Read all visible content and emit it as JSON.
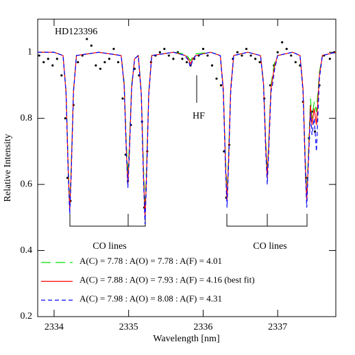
{
  "chart_data": {
    "type": "line",
    "xlabel": "Wavelength [nm]",
    "ylabel": "Relative Intensity",
    "annotations": [
      "HD123396",
      "HF",
      "CO lines",
      "CO lines"
    ],
    "xlim": [
      2333.78,
      2337.78
    ],
    "ylim": [
      0.2,
      1.1
    ],
    "xticks": [
      2334,
      2335,
      2336,
      2337
    ],
    "yticks": [
      0.2,
      0.4,
      0.6,
      0.8,
      1
    ],
    "x": [
      2333.78,
      2334.0,
      2334.12,
      2334.16,
      2334.19,
      2334.21,
      2334.23,
      2334.26,
      2334.3,
      2334.6,
      2334.9,
      2334.94,
      2334.97,
      2334.99,
      2335.01,
      2335.04,
      2335.08,
      2335.13,
      2335.17,
      2335.2,
      2335.22,
      2335.24,
      2335.27,
      2335.31,
      2335.6,
      2335.76,
      2335.8,
      2335.83,
      2335.86,
      2335.9,
      2336.1,
      2336.23,
      2336.27,
      2336.3,
      2336.32,
      2336.34,
      2336.37,
      2336.41,
      2336.6,
      2336.77,
      2336.81,
      2336.84,
      2336.86,
      2336.88,
      2336.91,
      2336.93,
      2336.96,
      2337.0,
      2337.2,
      2337.3,
      2337.34,
      2337.37,
      2337.39,
      2337.41,
      2337.44,
      2337.46,
      2337.49,
      2337.52,
      2337.56,
      2337.6,
      2337.78
    ],
    "series": [
      {
        "name": "A(C) = 7.78 : A(O) = 7.78 : A(F) = 4.01",
        "color": "#00e000",
        "linestyle": "long-dash",
        "values": [
          1.0,
          1.0,
          0.99,
          0.885,
          0.655,
          0.54,
          0.655,
          0.885,
          0.99,
          1.0,
          0.99,
          0.91,
          0.72,
          0.63,
          0.72,
          0.9,
          0.98,
          0.99,
          0.88,
          0.65,
          0.53,
          0.65,
          0.88,
          0.99,
          1.0,
          0.995,
          0.985,
          0.975,
          0.985,
          0.995,
          1.0,
          0.99,
          0.89,
          0.68,
          0.57,
          0.68,
          0.89,
          0.99,
          1.0,
          0.99,
          0.91,
          0.73,
          0.64,
          0.73,
          0.9,
          0.93,
          0.97,
          0.99,
          1.0,
          0.99,
          0.89,
          0.68,
          0.57,
          0.68,
          0.86,
          0.8,
          0.85,
          0.82,
          0.94,
          0.99,
          1.0
        ]
      },
      {
        "name": "A(C) = 7.88 : A(O) = 7.93 : A(F) = 4.16 (best fit)",
        "color": "#ff0000",
        "linestyle": "solid",
        "values": [
          1.0,
          1.0,
          0.99,
          0.88,
          0.64,
          0.52,
          0.64,
          0.88,
          0.99,
          1.0,
          0.99,
          0.9,
          0.7,
          0.6,
          0.7,
          0.89,
          0.98,
          0.99,
          0.875,
          0.625,
          0.5,
          0.625,
          0.875,
          0.99,
          1.0,
          0.99,
          0.98,
          0.965,
          0.98,
          0.99,
          1.0,
          0.99,
          0.89,
          0.66,
          0.55,
          0.66,
          0.89,
          0.99,
          1.0,
          0.99,
          0.905,
          0.715,
          0.62,
          0.715,
          0.89,
          0.92,
          0.96,
          0.99,
          1.0,
          0.99,
          0.89,
          0.66,
          0.55,
          0.66,
          0.84,
          0.78,
          0.83,
          0.78,
          0.93,
          0.99,
          1.0
        ]
      },
      {
        "name": "A(C) = 7.98 : A(O) = 8.08 : A(F) = 4.31",
        "color": "#0000ff",
        "linestyle": "dash",
        "values": [
          1.0,
          1.0,
          0.99,
          0.88,
          0.63,
          0.51,
          0.63,
          0.88,
          0.99,
          1.0,
          0.99,
          0.9,
          0.69,
          0.59,
          0.69,
          0.89,
          0.98,
          0.99,
          0.87,
          0.61,
          0.48,
          0.61,
          0.87,
          0.99,
          1.0,
          0.99,
          0.975,
          0.955,
          0.975,
          0.99,
          1.0,
          0.99,
          0.88,
          0.65,
          0.53,
          0.65,
          0.88,
          0.99,
          1.0,
          0.99,
          0.9,
          0.7,
          0.6,
          0.7,
          0.88,
          0.9,
          0.95,
          0.99,
          1.0,
          0.99,
          0.88,
          0.65,
          0.53,
          0.65,
          0.82,
          0.75,
          0.8,
          0.7,
          0.92,
          0.99,
          1.0
        ]
      }
    ],
    "observed": {
      "color": "#000000",
      "x": [
        2333.8,
        2333.86,
        2333.92,
        2333.98,
        2334.04,
        2334.1,
        2334.15,
        2334.18,
        2334.22,
        2334.26,
        2334.32,
        2334.38,
        2334.44,
        2334.5,
        2334.56,
        2334.62,
        2334.68,
        2334.74,
        2334.8,
        2334.86,
        2334.92,
        2334.96,
        2334.99,
        2335.03,
        2335.08,
        2335.14,
        2335.18,
        2335.21,
        2335.25,
        2335.3,
        2335.36,
        2335.42,
        2335.48,
        2335.54,
        2335.6,
        2335.66,
        2335.72,
        2335.78,
        2335.83,
        2335.88,
        2335.94,
        2336.0,
        2336.06,
        2336.12,
        2336.18,
        2336.24,
        2336.28,
        2336.31,
        2336.35,
        2336.4,
        2336.46,
        2336.52,
        2336.58,
        2336.64,
        2336.7,
        2336.76,
        2336.82,
        2336.86,
        2336.9,
        2336.95,
        2337.0,
        2337.06,
        2337.12,
        2337.18,
        2337.24,
        2337.3,
        2337.34,
        2337.38,
        2337.42,
        2337.46,
        2337.5,
        2337.56,
        2337.62,
        2337.7,
        2337.76
      ],
      "y": [
        0.99,
        0.97,
        0.98,
        0.96,
        0.98,
        0.93,
        0.8,
        0.62,
        0.55,
        0.84,
        0.97,
        0.99,
        1.04,
        1.02,
        0.96,
        0.95,
        0.97,
        0.98,
        1.01,
        0.97,
        0.86,
        0.69,
        0.61,
        0.78,
        0.95,
        0.93,
        0.79,
        0.53,
        0.7,
        0.97,
        0.99,
        1.0,
        1.01,
        0.99,
        0.98,
        1.0,
        0.98,
        0.97,
        0.96,
        0.98,
        0.99,
        1.01,
        0.99,
        0.96,
        0.92,
        0.9,
        0.7,
        0.56,
        0.72,
        0.98,
        1.0,
        0.99,
        1.01,
        0.99,
        0.98,
        0.97,
        0.86,
        0.66,
        0.9,
        0.96,
        1.0,
        1.03,
        1.01,
        0.99,
        0.97,
        0.96,
        0.85,
        0.62,
        0.74,
        0.82,
        0.76,
        0.9,
        0.99,
        0.98,
        1.0
      ]
    }
  }
}
